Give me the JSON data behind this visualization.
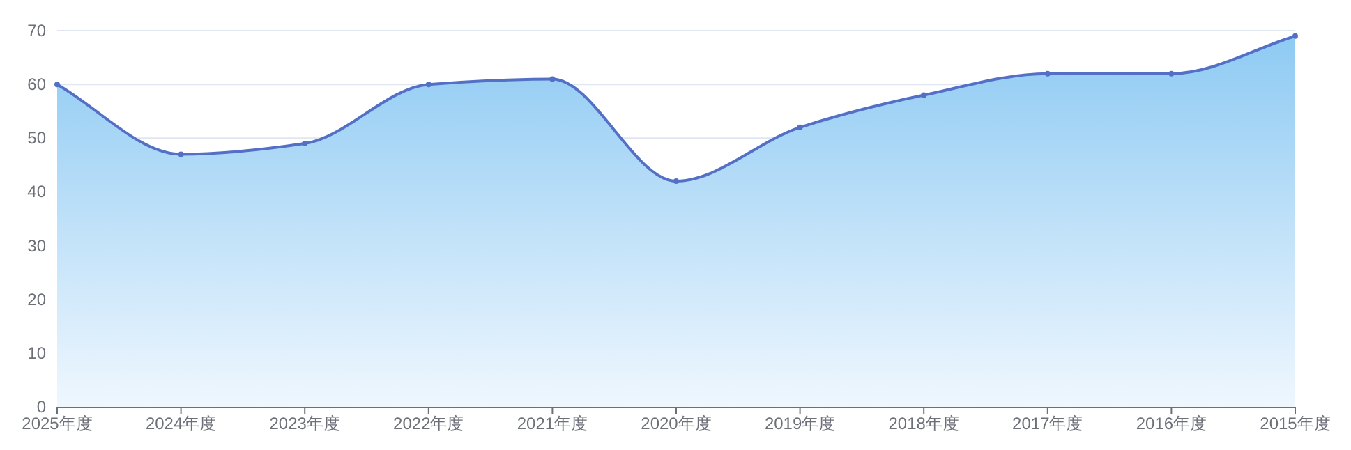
{
  "chart_data": {
    "type": "area",
    "categories": [
      "2025年度",
      "2024年度",
      "2023年度",
      "2022年度",
      "2021年度",
      "2020年度",
      "2019年度",
      "2018年度",
      "2017年度",
      "2016年度",
      "2015年度"
    ],
    "series": [
      {
        "color": "#5470c6",
        "values": [
          60,
          47,
          49,
          60,
          61,
          42,
          52,
          58,
          62,
          62,
          69
        ]
      }
    ],
    "ylim": [
      0,
      70
    ],
    "yticks": [
      0,
      10,
      20,
      30,
      40,
      50,
      60,
      70
    ],
    "grid": "y",
    "marker": "circle"
  }
}
